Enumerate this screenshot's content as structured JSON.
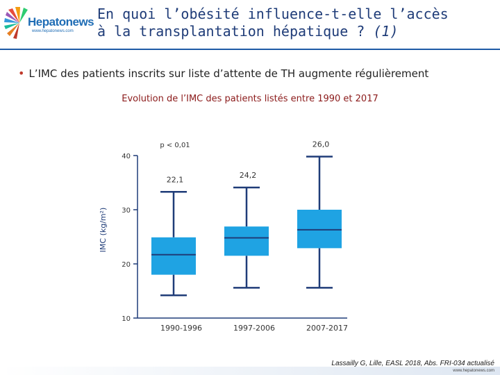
{
  "header": {
    "logo_name": "Hepatonews",
    "logo_url": "www.hepatonews.com",
    "title_line1": "En quoi l’obésité influence-t-elle l’accès",
    "title_line2": "à la transplantation hépatique ?",
    "title_suffix": "(1)",
    "accent_color": "#1e5aa6"
  },
  "bullet": "L’IMC des patients inscrits sur liste d’attente de TH augmente régulièrement",
  "chart_data": {
    "type": "boxplot",
    "title": "Evolution de l’IMC des patients listés entre 1990 et 2017",
    "ylabel": "IMC (kg/m²)",
    "xlabel": "",
    "ylim": [
      10,
      40
    ],
    "yticks": [
      10,
      20,
      30,
      40
    ],
    "grid": false,
    "box_color": "#1fa3e3",
    "median_color": "#1f3c78",
    "whisker_color": "#1f3c78",
    "categories": [
      "1990-1996",
      "1997-2006",
      "2007-2017"
    ],
    "boxes": [
      {
        "min": 14.2,
        "q1": 18.0,
        "median": 21.7,
        "q3": 24.9,
        "max": 33.3,
        "label": "22,1"
      },
      {
        "min": 15.6,
        "q1": 21.5,
        "median": 24.8,
        "q3": 26.9,
        "max": 34.1,
        "label": "24,2"
      },
      {
        "min": 15.6,
        "q1": 22.9,
        "median": 26.3,
        "q3": 30.0,
        "max": 39.8,
        "label": "26,0"
      }
    ],
    "annotation": "p < 0,01"
  },
  "footer": {
    "citation": "Lassailly G, Lille, EASL 2018, Abs. FRI-034 actualisé",
    "url": "www.hepatonews.com"
  }
}
